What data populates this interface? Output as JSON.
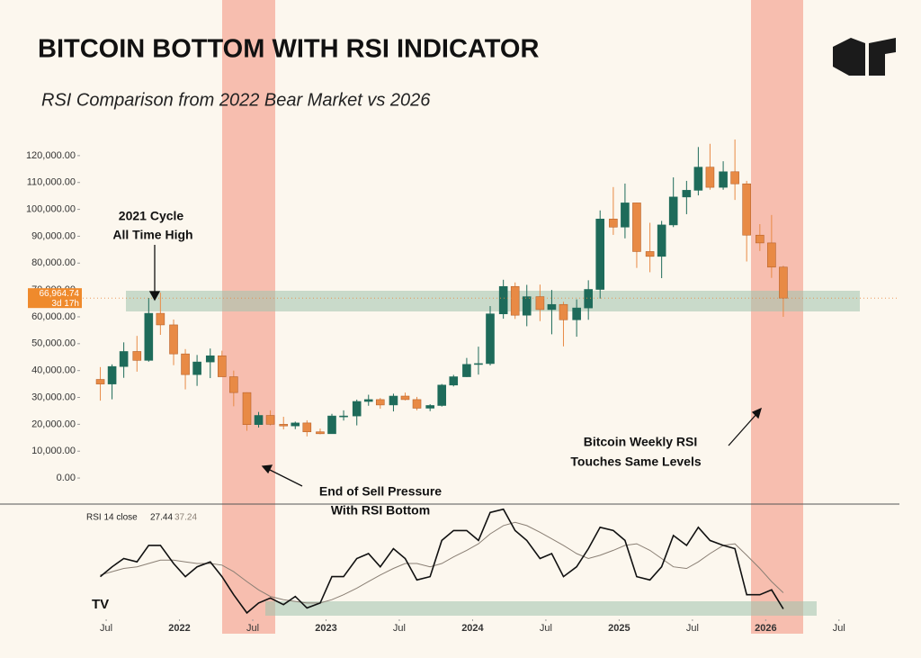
{
  "chart_data": {
    "type": "candlestick",
    "title": "BITCOIN BOTTOM WITH RSI INDICATOR",
    "subtitle": "RSI Comparison from 2022 Bear Market vs 2026",
    "x": [
      2021.46,
      2021.54,
      2021.62,
      2021.71,
      2021.79,
      2021.87,
      2021.96,
      2022.04,
      2022.12,
      2022.21,
      2022.29,
      2022.37,
      2022.46,
      2022.54,
      2022.62,
      2022.71,
      2022.79,
      2022.87,
      2022.96,
      2023.04,
      2023.12,
      2023.21,
      2023.29,
      2023.37,
      2023.46,
      2023.54,
      2023.62,
      2023.71,
      2023.79,
      2023.87,
      2023.96,
      2024.04,
      2024.12,
      2024.21,
      2024.29,
      2024.37,
      2024.46,
      2024.54,
      2024.62,
      2024.71,
      2024.79,
      2024.87,
      2024.96,
      2025.04,
      2025.12,
      2025.21,
      2025.29,
      2025.37,
      2025.46,
      2025.54,
      2025.62,
      2025.71,
      2025.79,
      2025.87,
      2025.96,
      2026.04,
      2026.12
    ],
    "open": [
      36700,
      35000,
      41500,
      47100,
      43800,
      61300,
      57000,
      46200,
      38500,
      43200,
      45500,
      37700,
      31800,
      19900,
      23300,
      20000,
      19400,
      20500,
      17200,
      16500,
      23100,
      23100,
      28500,
      29200,
      27200,
      30500,
      29200,
      26000,
      27000,
      34600,
      37700,
      42300,
      42600,
      61100,
      71300,
      60600,
      67500,
      62700,
      64600,
      58900,
      63300,
      70200,
      96400,
      93400,
      102400,
      84300,
      82500,
      94200,
      104600,
      107100,
      115700,
      108200,
      114000,
      109500,
      90400,
      87500,
      78500
    ],
    "high": [
      41300,
      42300,
      50500,
      52900,
      67000,
      69000,
      59000,
      48000,
      45800,
      48200,
      47400,
      40000,
      31900,
      24600,
      25200,
      22800,
      21000,
      21500,
      18400,
      23900,
      25200,
      29200,
      31000,
      29800,
      31400,
      31800,
      30200,
      27500,
      35000,
      38400,
      44700,
      48900,
      64000,
      73800,
      72800,
      71900,
      72000,
      70000,
      65600,
      66500,
      73600,
      99600,
      108300,
      109600,
      102500,
      95000,
      95700,
      111900,
      110600,
      123200,
      124400,
      117900,
      126000,
      110600,
      94500,
      97900,
      79000
    ],
    "low": [
      28800,
      29300,
      37300,
      39600,
      43300,
      53300,
      42000,
      33000,
      34300,
      37200,
      37700,
      26700,
      17600,
      18800,
      19600,
      18100,
      18200,
      15500,
      16300,
      16500,
      21400,
      19600,
      26900,
      25800,
      24800,
      28900,
      25200,
      24900,
      26600,
      34100,
      37600,
      38500,
      41900,
      59300,
      59200,
      56500,
      58400,
      53500,
      49000,
      52600,
      58900,
      66800,
      90500,
      89200,
      78200,
      76600,
      74400,
      93400,
      98200,
      105200,
      107300,
      107300,
      103500,
      80600,
      84500,
      74500,
      60000
    ],
    "close": [
      35000,
      41500,
      47100,
      43800,
      61300,
      57000,
      46200,
      38500,
      43200,
      45500,
      37700,
      31800,
      19900,
      23300,
      20000,
      19400,
      20500,
      17200,
      16500,
      23100,
      23100,
      28500,
      29200,
      27200,
      30500,
      29200,
      26000,
      27000,
      34600,
      37700,
      42300,
      42600,
      61100,
      71300,
      60600,
      67500,
      62700,
      64600,
      58900,
      63300,
      70200,
      96400,
      93400,
      102400,
      84300,
      82500,
      94200,
      104600,
      107100,
      115700,
      108200,
      114000,
      109500,
      90400,
      87500,
      78500,
      66964.74
    ],
    "up_color": "#1e6b5a",
    "down_color": "#e88a45",
    "xlim": [
      2020.8,
      2026.9
    ],
    "xticks": [
      {
        "value": 2021.5,
        "label": "Jul"
      },
      2022,
      {
        "value": 2022.5,
        "label": "Jul"
      },
      2023,
      {
        "value": 2023.5,
        "label": "Jul"
      },
      2024,
      {
        "value": 2024.5,
        "label": "Jul"
      },
      2025,
      {
        "value": 2025.5,
        "label": "Jul"
      },
      2026,
      {
        "value": 2026.5,
        "label": "Jul"
      }
    ],
    "ylim": [
      -5000,
      128000
    ],
    "yticks": [
      {
        "value": 0,
        "label": "0.00"
      },
      {
        "value": 10000,
        "label": "10,000.00"
      },
      {
        "value": 20000,
        "label": "20,000.00"
      },
      {
        "value": 30000,
        "label": "30,000.00"
      },
      {
        "value": 40000,
        "label": "40,000.00"
      },
      {
        "value": 50000,
        "label": "50,000.00"
      },
      {
        "value": 60000,
        "label": "60,000.00"
      },
      {
        "value": 70000,
        "label": "70,000.00"
      },
      {
        "value": 80000,
        "label": "80,000.00"
      },
      {
        "value": 90000,
        "label": "90,000.00"
      },
      {
        "value": 100000,
        "label": "100,000.00"
      },
      {
        "value": 110000,
        "label": "110,000.00"
      },
      {
        "value": 120000,
        "label": "120,000.00"
      }
    ],
    "last_price": {
      "value": 66964.74,
      "label": "66,964.74"
    },
    "countdown": "3d 17h",
    "annotations": [
      [
        "2021 Cycle",
        "All Time High"
      ],
      [
        "End of Sell Pressure",
        "With RSI Bottom"
      ],
      [
        "Bitcoin Weekly RSI",
        "Touches Same Levels"
      ]
    ],
    "rsi": {
      "label": "RSI 14 close",
      "ylim": [
        20,
        90
      ],
      "series": [
        {
          "color": "#111111",
          "values": [
            47,
            53,
            58,
            56,
            66,
            66,
            55,
            47,
            53,
            56,
            47,
            36,
            25,
            31,
            34,
            30,
            35,
            28,
            31,
            47,
            47,
            58,
            61,
            53,
            64,
            58,
            45,
            47,
            69,
            75,
            75,
            69,
            86,
            88,
            75,
            69,
            58,
            61,
            47,
            53,
            64,
            77,
            75,
            69,
            47,
            45,
            53,
            72,
            66,
            77,
            69,
            66,
            64,
            36,
            36,
            39,
            27.44
          ]
        },
        {
          "color": "#8a7f74",
          "values": [
            48,
            50,
            52,
            53,
            55,
            57,
            57,
            56,
            55,
            55,
            54,
            50,
            44,
            39,
            35,
            33,
            32,
            31,
            31,
            33,
            36,
            40,
            44,
            48,
            52,
            55,
            55,
            53,
            55,
            59,
            63,
            67,
            73,
            78,
            80,
            78,
            74,
            70,
            66,
            61,
            58,
            60,
            63,
            66,
            67,
            63,
            58,
            53,
            52,
            56,
            61,
            66,
            67,
            60,
            52,
            44,
            37.24
          ]
        }
      ]
    }
  }
}
